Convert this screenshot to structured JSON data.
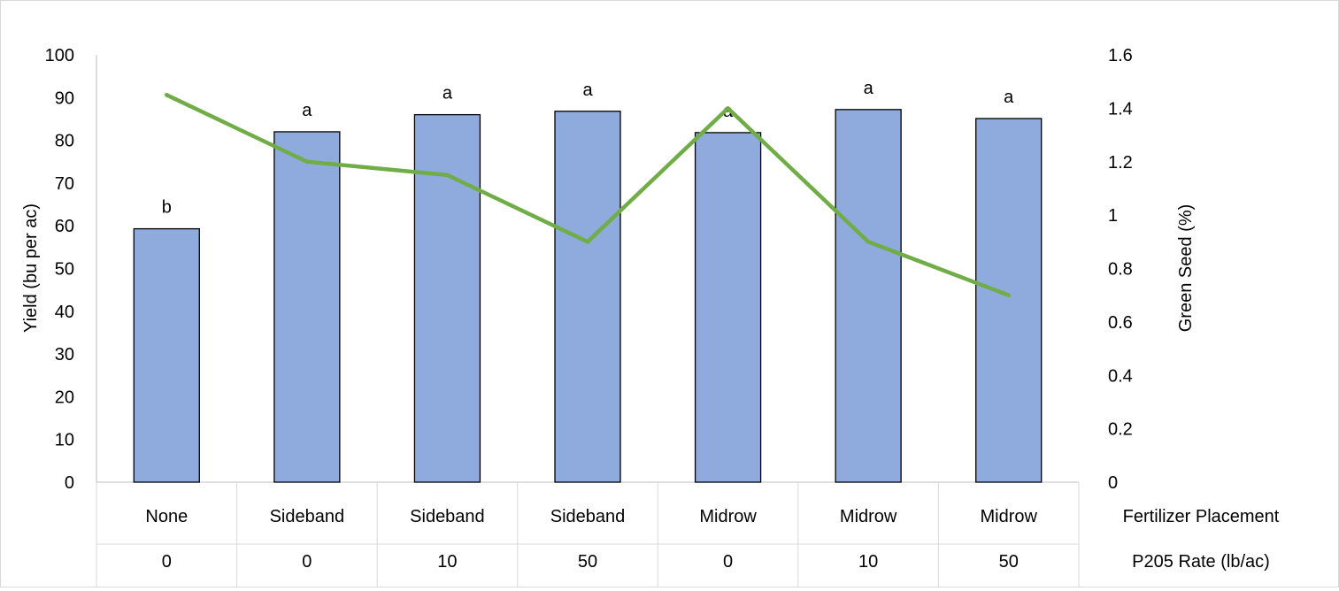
{
  "chart_data": {
    "type": "bar",
    "categories": [
      {
        "placement": "None",
        "rate": "0"
      },
      {
        "placement": "Sideband",
        "rate": "0"
      },
      {
        "placement": "Sideband",
        "rate": "10"
      },
      {
        "placement": "Sideband",
        "rate": "50"
      },
      {
        "placement": "Midrow",
        "rate": "0"
      },
      {
        "placement": "Midrow",
        "rate": "10"
      },
      {
        "placement": "Midrow",
        "rate": "50"
      }
    ],
    "category_row_labels": [
      "Fertilizer Placement",
      "P205 Rate (lb/ac)"
    ],
    "series": [
      {
        "type": "bar",
        "axis": "left",
        "values": [
          59.3,
          82,
          86,
          86.8,
          81.8,
          87.2,
          85.1
        ],
        "data_labels": [
          "b",
          "a",
          "a",
          "a",
          "a",
          "a",
          "a"
        ],
        "color": "#8faadc"
      },
      {
        "type": "line",
        "axis": "right",
        "values": [
          1.45,
          1.2,
          1.15,
          0.9,
          1.4,
          0.9,
          0.7
        ],
        "color": "#70ad47"
      }
    ],
    "ylabel": "Yield (bu per ac)",
    "y2label": "Green Seed (%)",
    "ylim": [
      0,
      100
    ],
    "y2lim": [
      0,
      1.6
    ],
    "yticks": [
      "0",
      "10",
      "20",
      "30",
      "40",
      "50",
      "60",
      "70",
      "80",
      "90",
      "100"
    ],
    "y2ticks": [
      "0",
      "0.2",
      "0.4",
      "0.6",
      "0.8",
      "1",
      "1.2",
      "1.4",
      "1.6"
    ],
    "grid": false
  }
}
